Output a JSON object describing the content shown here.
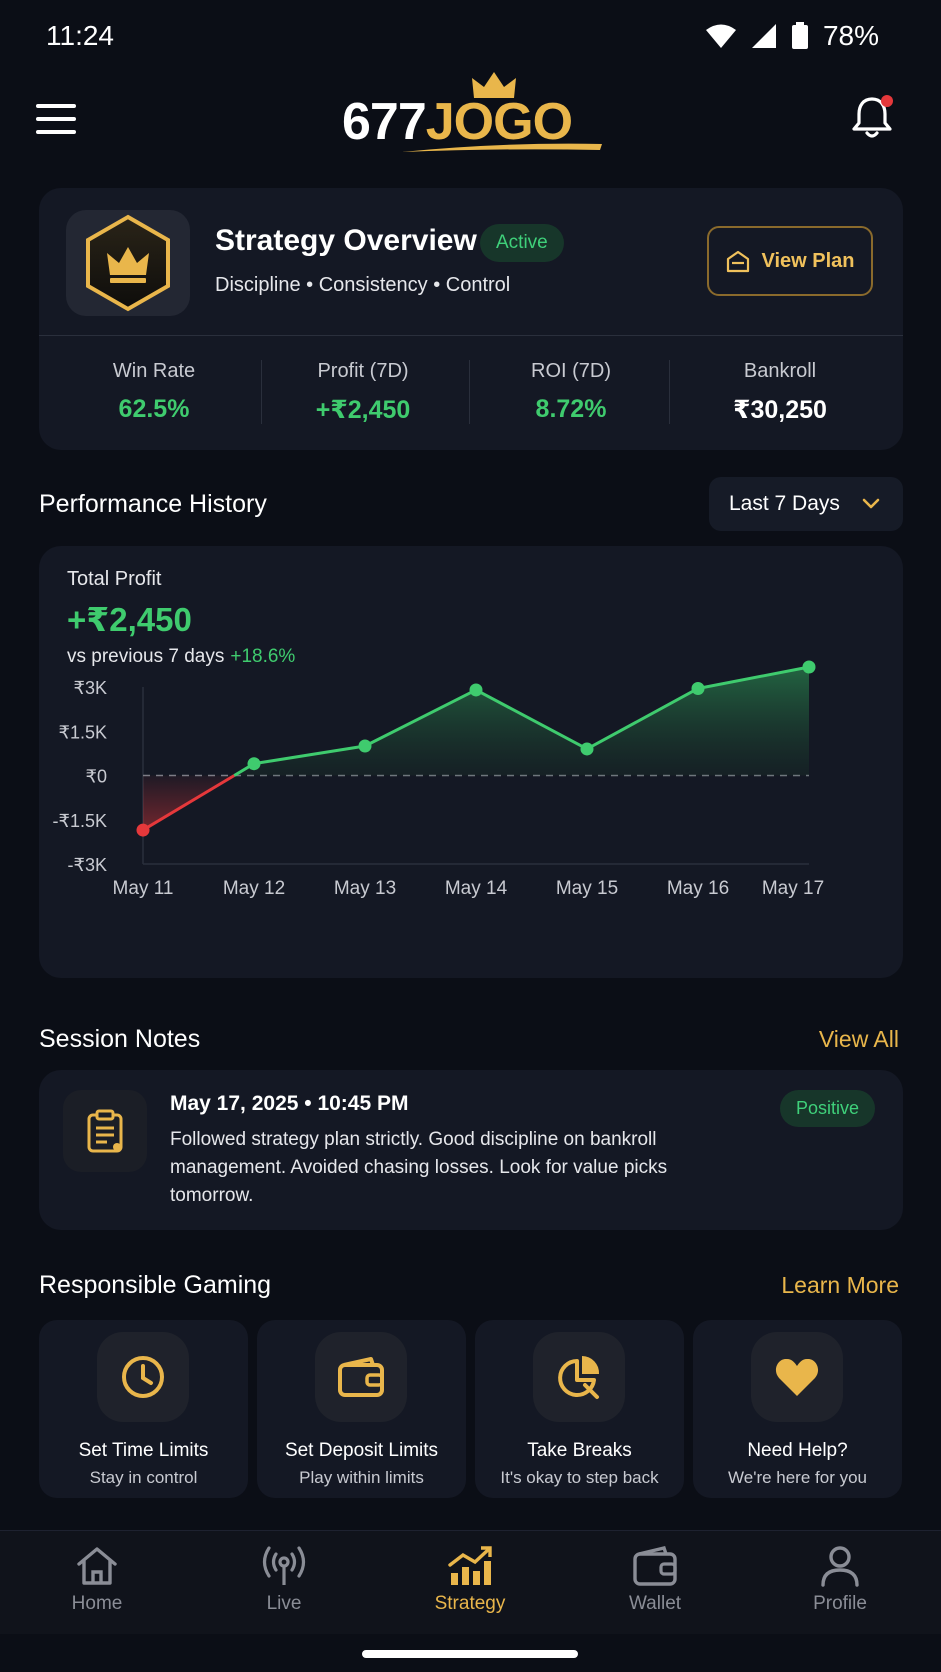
{
  "status_bar": {
    "time": "11:24",
    "battery": "78%"
  },
  "header": {
    "logo_part1": "677",
    "logo_part2": "JOGO"
  },
  "overview": {
    "title": "Strategy Overview",
    "status": "Active",
    "subtitle": "Discipline • Consistency • Control",
    "view_plan_label": "View Plan",
    "stats": [
      {
        "label": "Win Rate",
        "value": "62.5%"
      },
      {
        "label": "Profit (7D)",
        "value": "+₹2,450"
      },
      {
        "label": "ROI (7D)",
        "value": "8.72%"
      },
      {
        "label": "Bankroll",
        "value": "₹30,250"
      }
    ]
  },
  "performance": {
    "title": "Performance History",
    "range": "Last 7 Days",
    "total_label": "Total Profit",
    "total_value": "+₹2,450",
    "compare_label": "vs previous 7 days",
    "compare_value": "+18.6%"
  },
  "chart_data": {
    "type": "area",
    "categories": [
      "May 11",
      "May 12",
      "May 13",
      "May 14",
      "May 15",
      "May 16",
      "May 17"
    ],
    "values": [
      -1850,
      400,
      1000,
      2900,
      900,
      2950,
      4200
    ],
    "ytick_labels": [
      "₹3K",
      "₹1.5K",
      "₹0",
      "-₹1.5K",
      "-₹3K"
    ],
    "ytick_values": [
      3000,
      1500,
      0,
      -1500,
      -3000
    ],
    "ylim": [
      -3000,
      3000
    ],
    "colors": {
      "positive": "#3fcb6e",
      "negative": "#e5383b"
    }
  },
  "notes": {
    "title": "Session Notes",
    "view_all": "View All",
    "items": [
      {
        "date": "May 17, 2025 • 10:45 PM",
        "text": "Followed strategy plan strictly. Good discipline on bankroll management. Avoided chasing losses. Look for value picks tomorrow.",
        "sentiment": "Positive"
      }
    ]
  },
  "responsible": {
    "title": "Responsible Gaming",
    "learn_more": "Learn More",
    "items": [
      {
        "title": "Set Time Limits",
        "subtitle": "Stay in control",
        "icon": "clock-icon"
      },
      {
        "title": "Set Deposit Limits",
        "subtitle": "Play within limits",
        "icon": "wallet-icon"
      },
      {
        "title": "Take Breaks",
        "subtitle": "It's okay to step back",
        "icon": "pie-chart-icon"
      },
      {
        "title": "Need Help?",
        "subtitle": "We're here for you",
        "icon": "heart-icon"
      }
    ]
  },
  "nav": {
    "items": [
      {
        "label": "Home",
        "icon": "home-icon"
      },
      {
        "label": "Live",
        "icon": "broadcast-icon"
      },
      {
        "label": "Strategy",
        "icon": "strategy-chart-icon",
        "active": true
      },
      {
        "label": "Wallet",
        "icon": "wallet-icon"
      },
      {
        "label": "Profile",
        "icon": "profile-icon"
      }
    ]
  },
  "colors": {
    "accent": "#e9b64b",
    "positive": "#3fcb6e",
    "background": "#0b0e16",
    "card": "#141824"
  }
}
